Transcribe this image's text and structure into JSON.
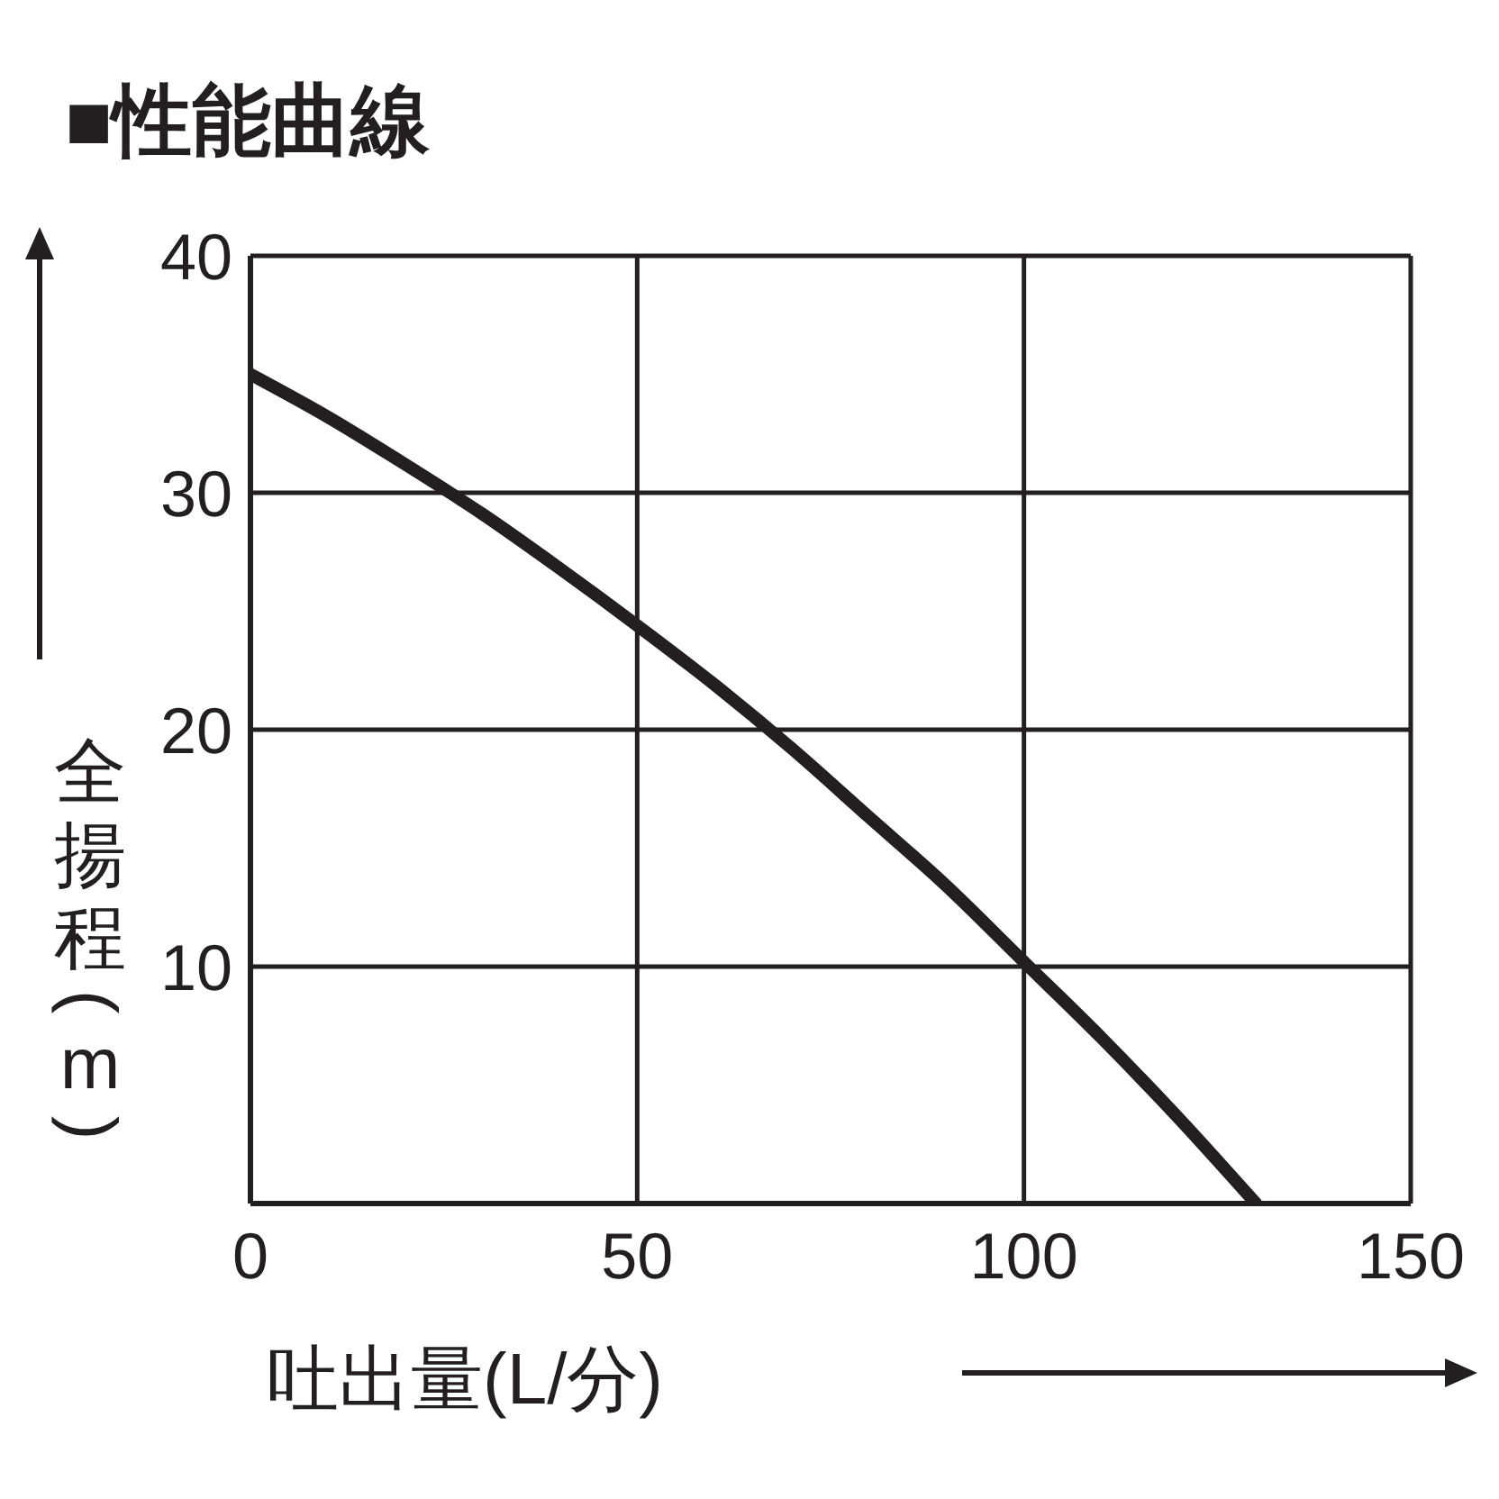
{
  "chart_data": {
    "type": "line",
    "title": "■性能曲線",
    "xlabel": "吐出量(L/分)",
    "ylabel": "全揚程(m)",
    "x": [
      0,
      10,
      20,
      30,
      40,
      50,
      60,
      70,
      80,
      90,
      100,
      110,
      120,
      130
    ],
    "series": [
      {
        "color": "#231f20",
        "values": [
          35,
          33.2,
          31.2,
          29.1,
          26.8,
          24.4,
          21.9,
          19.2,
          16.3,
          13.4,
          10.2,
          7,
          3.6,
          0
        ]
      }
    ],
    "xlim": [
      0,
      150
    ],
    "xticks": [
      0,
      50,
      100,
      150
    ],
    "ylim": [
      0,
      40
    ],
    "yticks": [
      {
        "value": 0,
        "label": null
      },
      10,
      20,
      30,
      40
    ],
    "grid": true,
    "legend": false,
    "marker": "none",
    "line_style": "solid"
  }
}
